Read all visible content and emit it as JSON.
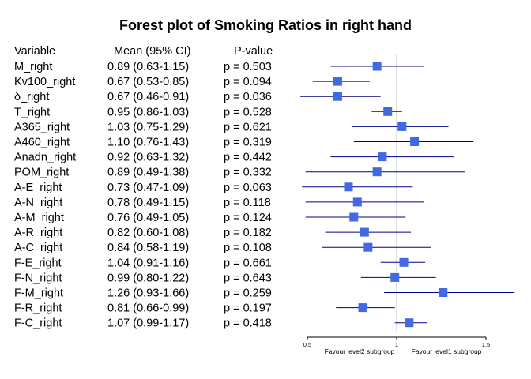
{
  "chart_data": {
    "type": "forest",
    "title": "Forest plot of Smoking Ratios in right hand",
    "columns": {
      "variable": "Variable",
      "mean": "Mean (95% CI)",
      "pvalue": "P-value"
    },
    "rows": [
      {
        "variable": "M_right",
        "ci_text": "0.89 (0.63-1.15)",
        "p_text": "p = 0.503",
        "mean": 0.89,
        "lower": 0.63,
        "upper": 1.15
      },
      {
        "variable": "Kv100_right",
        "ci_text": "0.67 (0.53-0.85)",
        "p_text": "p = 0.094",
        "mean": 0.67,
        "lower": 0.53,
        "upper": 0.85
      },
      {
        "variable": "δ_right",
        "ci_text": "0.67 (0.46-0.91)",
        "p_text": "p = 0.036",
        "mean": 0.67,
        "lower": 0.46,
        "upper": 0.91
      },
      {
        "variable": "T_right",
        "ci_text": "0.95 (0.86-1.03)",
        "p_text": "p = 0.528",
        "mean": 0.95,
        "lower": 0.86,
        "upper": 1.03
      },
      {
        "variable": "A365_right",
        "ci_text": "1.03 (0.75-1.29)",
        "p_text": "p = 0.621",
        "mean": 1.03,
        "lower": 0.75,
        "upper": 1.29
      },
      {
        "variable": "A460_right",
        "ci_text": "1.10 (0.76-1.43)",
        "p_text": "p = 0.319",
        "mean": 1.1,
        "lower": 0.76,
        "upper": 1.43
      },
      {
        "variable": "Anadn_right",
        "ci_text": "0.92 (0.63-1.32)",
        "p_text": "p = 0.442",
        "mean": 0.92,
        "lower": 0.63,
        "upper": 1.32
      },
      {
        "variable": "POM_right",
        "ci_text": "0.89 (0.49-1.38)",
        "p_text": "p = 0.332",
        "mean": 0.89,
        "lower": 0.49,
        "upper": 1.38
      },
      {
        "variable": "A-E_right",
        "ci_text": "0.73 (0.47-1.09)",
        "p_text": "p = 0.063",
        "mean": 0.73,
        "lower": 0.47,
        "upper": 1.09
      },
      {
        "variable": "A-N_right",
        "ci_text": "0.78 (0.49-1.15)",
        "p_text": "p = 0.118",
        "mean": 0.78,
        "lower": 0.49,
        "upper": 1.15
      },
      {
        "variable": "A-M_right",
        "ci_text": "0.76 (0.49-1.05)",
        "p_text": "p = 0.124",
        "mean": 0.76,
        "lower": 0.49,
        "upper": 1.05
      },
      {
        "variable": "A-R_right",
        "ci_text": "0.82 (0.60-1.08)",
        "p_text": "p = 0.182",
        "mean": 0.82,
        "lower": 0.6,
        "upper": 1.08
      },
      {
        "variable": "A-C_right",
        "ci_text": "0.84 (0.58-1.19)",
        "p_text": "p = 0.108",
        "mean": 0.84,
        "lower": 0.58,
        "upper": 1.19
      },
      {
        "variable": "F-E_right",
        "ci_text": "1.04 (0.91-1.16)",
        "p_text": "p = 0.661",
        "mean": 1.04,
        "lower": 0.91,
        "upper": 1.16
      },
      {
        "variable": "F-N_right",
        "ci_text": "0.99 (0.80-1.22)",
        "p_text": "p = 0.643",
        "mean": 0.99,
        "lower": 0.8,
        "upper": 1.22
      },
      {
        "variable": "F-M_right",
        "ci_text": "1.26 (0.93-1.66)",
        "p_text": "p = 0.259",
        "mean": 1.26,
        "lower": 0.93,
        "upper": 1.66
      },
      {
        "variable": "F-R_right",
        "ci_text": "0.81 (0.66-0.99)",
        "p_text": "p = 0.197",
        "mean": 0.81,
        "lower": 0.66,
        "upper": 0.99
      },
      {
        "variable": "F-C_right",
        "ci_text": "1.07 (0.99-1.17)",
        "p_text": "p = 0.418",
        "mean": 1.07,
        "lower": 0.99,
        "upper": 1.17
      }
    ],
    "x_axis": {
      "range": [
        0.5,
        1.5
      ],
      "ticks": [
        {
          "value": 0.5,
          "label": "0.5"
        },
        {
          "value": 1.0,
          "label": "1"
        },
        {
          "value": 1.5,
          "label": "1.5"
        }
      ],
      "reference_line": 1.0
    },
    "favour_labels": {
      "left": "Favour level2 subgroup",
      "right": "Favour level1 subgroup"
    },
    "colors": {
      "box": "#4169e1",
      "ci_line": "#00008b",
      "reference": "#bfbfbf",
      "axis": "#000000"
    }
  }
}
